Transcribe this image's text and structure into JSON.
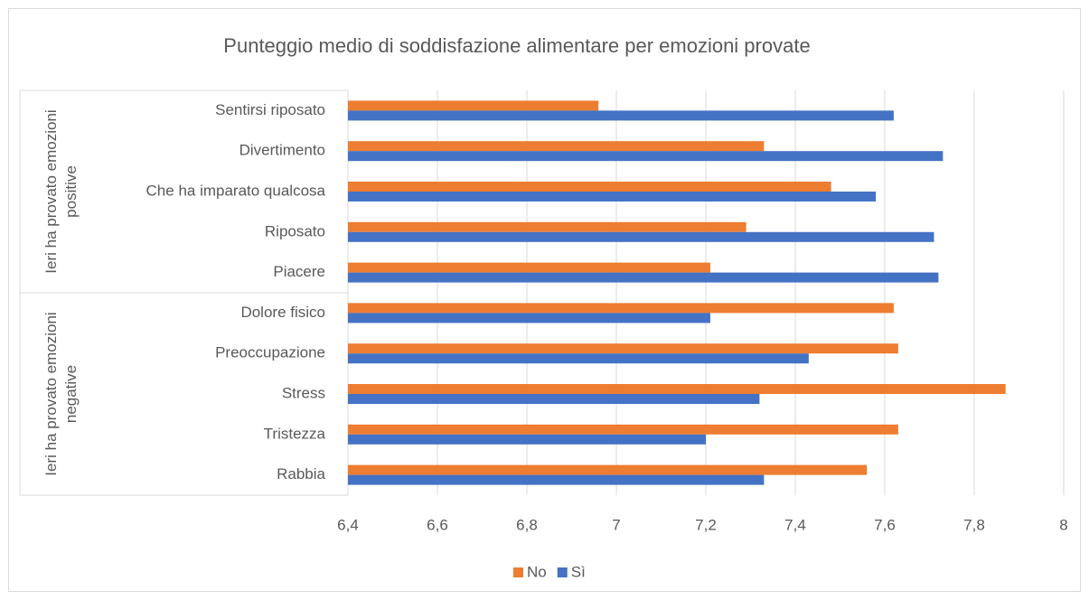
{
  "chart_data": {
    "type": "bar",
    "orientation": "horizontal",
    "title": "Punteggio medio di soddisfazione alimentare per emozioni provate",
    "groups": [
      {
        "label": "Ieri ha provato emozioni positive",
        "categories": [
          "Sentirsi riposato",
          "Divertimento",
          "Che ha imparato qualcosa",
          "Riposato",
          "Piacere"
        ]
      },
      {
        "label": "Ieri ha provato emozioni negative",
        "categories": [
          "Dolore fisico",
          "Preoccupazione",
          "Stress",
          "Tristezza",
          "Rabbia"
        ]
      }
    ],
    "series": [
      {
        "name": "No",
        "color": "#ed7d31",
        "values": [
          6.96,
          7.33,
          7.48,
          7.29,
          7.21,
          7.62,
          7.63,
          7.87,
          7.63,
          7.56
        ]
      },
      {
        "name": "Sì",
        "color": "#4472c4",
        "values": [
          7.62,
          7.73,
          7.58,
          7.71,
          7.72,
          7.21,
          7.43,
          7.32,
          7.2,
          7.33
        ]
      }
    ],
    "xlim": [
      6.4,
      8
    ],
    "xticks": [
      {
        "value": 6.4,
        "label": "6,4"
      },
      {
        "value": 6.6,
        "label": "6,6"
      },
      {
        "value": 6.8,
        "label": "6,8"
      },
      7,
      {
        "value": 7.2,
        "label": "7,2"
      },
      {
        "value": 7.4,
        "label": "7,4"
      },
      {
        "value": 7.6,
        "label": "7,6"
      },
      {
        "value": 7.8,
        "label": "7,8"
      },
      8
    ],
    "grid": true,
    "legend": "bottom"
  }
}
